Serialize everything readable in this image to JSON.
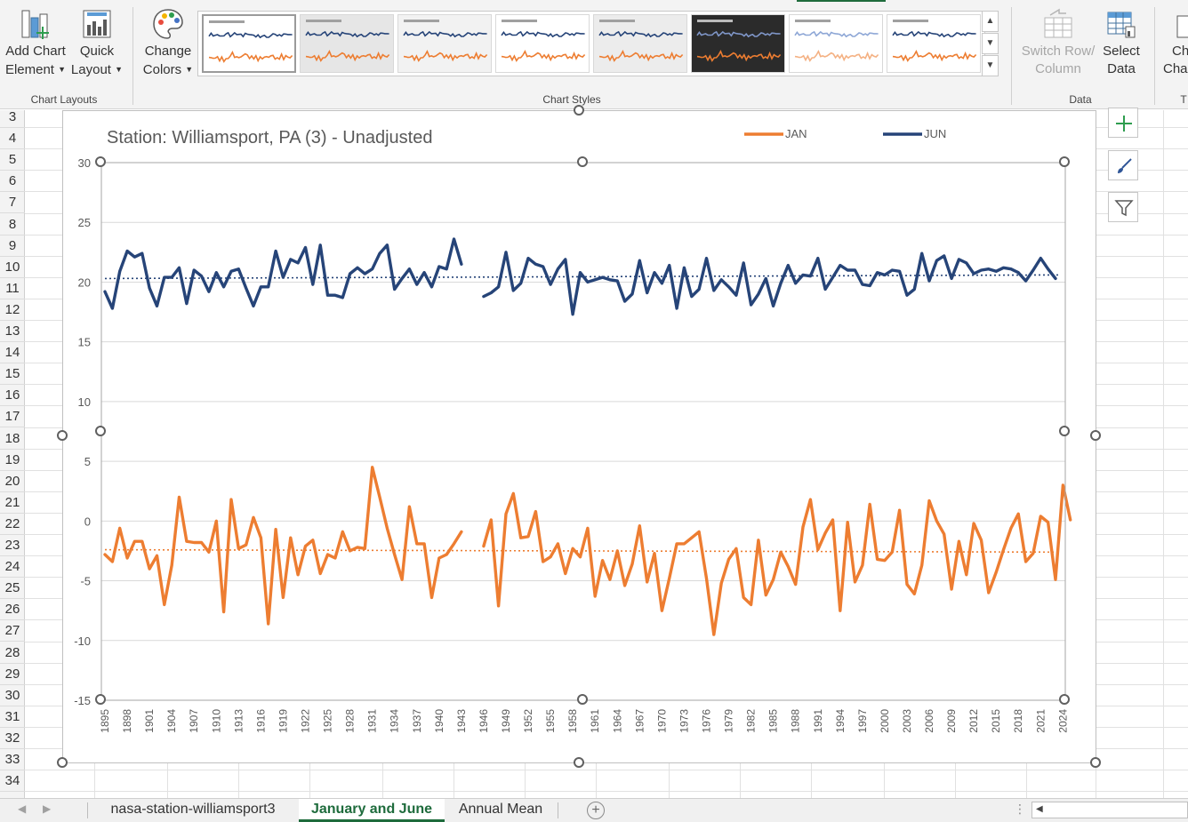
{
  "ribbon": {
    "add_chart_element": {
      "line1": "Add Chart",
      "line2": "Element"
    },
    "quick_layout": {
      "line1": "Quick",
      "line2": "Layout"
    },
    "change_colors": {
      "line1": "Change",
      "line2": "Colors"
    },
    "switch_row_column": {
      "line1": "Switch Row/",
      "line2": "Column"
    },
    "select_data": {
      "line1": "Select",
      "line2": "Data"
    },
    "change_chart_type": {
      "line1": "Ch",
      "line2": "Char"
    },
    "groups": {
      "chart_layouts": "Chart Layouts",
      "chart_styles": "Chart Styles",
      "data": "Data",
      "type": "T"
    }
  },
  "rows": [
    "3",
    "4",
    "5",
    "6",
    "7",
    "8",
    "9",
    "10",
    "11",
    "12",
    "13",
    "14",
    "15",
    "16",
    "17",
    "18",
    "19",
    "20",
    "21",
    "22",
    "23",
    "24",
    "25",
    "26",
    "27",
    "28",
    "29",
    "30",
    "31",
    "32",
    "33",
    "34"
  ],
  "sheet_tabs": {
    "tab1": "nasa-station-williamsport3",
    "tab2": "January and June",
    "tab3": "Annual Mean"
  },
  "colors": {
    "jan": "#ed7d31",
    "jun": "#264478",
    "excel_green": "#1e6b3c"
  },
  "chart_data": {
    "type": "line",
    "title": "Station: Williamsport, PA (3) - Unadjusted",
    "legend": [
      "JAN",
      "JUN"
    ],
    "legend_position": "top-right",
    "ylim": [
      -15,
      30
    ],
    "yticks": [
      30,
      25,
      20,
      15,
      10,
      5,
      0,
      -5,
      -10,
      -15
    ],
    "x_start": 1895,
    "x_end": 2023,
    "xtick_labels": [
      "1895",
      "1898",
      "1901",
      "1904",
      "1907",
      "1910",
      "1913",
      "1916",
      "1919",
      "1922",
      "1925",
      "1928",
      "1931",
      "1934",
      "1937",
      "1940",
      "1943",
      "1946",
      "1949",
      "1952",
      "1955",
      "1958",
      "1961",
      "1964",
      "1967",
      "1970",
      "1973",
      "1976",
      "1979",
      "1982",
      "1985",
      "1988",
      "1991",
      "1994",
      "1997",
      "2000",
      "2003",
      "2006",
      "2009",
      "2012",
      "2015",
      "2018",
      "2021",
      "2024"
    ],
    "trend": {
      "jan": [
        -2.4,
        -2.6
      ],
      "jun": [
        20.3,
        20.6
      ]
    },
    "series": [
      {
        "name": "JUN",
        "values": [
          19.2,
          17.8,
          20.9,
          22.6,
          22.1,
          22.4,
          19.5,
          18.0,
          20.4,
          20.4,
          21.2,
          18.2,
          21.0,
          20.5,
          19.2,
          20.8,
          19.6,
          20.9,
          21.1,
          19.5,
          18.0,
          19.6,
          19.6,
          22.6,
          20.4,
          21.9,
          21.6,
          22.9,
          19.8,
          23.1,
          18.9,
          18.9,
          18.7,
          20.7,
          21.2,
          20.7,
          21.1,
          22.4,
          23.1,
          19.4,
          20.3,
          21.1,
          19.8,
          20.8,
          19.6,
          21.3,
          21.1,
          23.6,
          21.5,
          null,
          null,
          18.8,
          19.1,
          19.6,
          22.5,
          19.3,
          19.9,
          22.0,
          21.5,
          21.3,
          19.8,
          21.1,
          21.9,
          17.3,
          20.8,
          20.0,
          20.2,
          20.4,
          20.2,
          20.1,
          18.4,
          19.0,
          21.8,
          19.1,
          20.8,
          19.9,
          21.4,
          17.8,
          21.2,
          18.8,
          19.4,
          22.0,
          19.3,
          20.2,
          19.6,
          18.9,
          21.6,
          18.1,
          19.0,
          20.3,
          18.0,
          19.9,
          21.4,
          19.9,
          20.6,
          20.5,
          22.0,
          19.4,
          20.4,
          21.4,
          21.0,
          21.0,
          19.8,
          19.7,
          20.8,
          20.6,
          21.0,
          20.9,
          18.9,
          19.4,
          22.4,
          20.1,
          21.8,
          22.2,
          20.3,
          21.9,
          21.6,
          20.7,
          21.0,
          21.1,
          20.9,
          21.2,
          21.1,
          20.8,
          20.1,
          21.0,
          22.0,
          21.1,
          20.3
        ],
        "color": "#264478"
      },
      {
        "name": "JAN",
        "values": [
          -2.8,
          -3.4,
          -0.6,
          -3.1,
          -1.7,
          -1.7,
          -4.0,
          -2.9,
          -7.0,
          -3.7,
          2.0,
          -1.7,
          -1.8,
          -1.8,
          -2.6,
          0.0,
          -7.6,
          1.8,
          -2.3,
          -2.0,
          0.3,
          -1.4,
          -8.6,
          -0.7,
          -6.4,
          -1.4,
          -4.5,
          -2.1,
          -1.6,
          -4.4,
          -2.8,
          -3.1,
          -0.9,
          -2.5,
          -2.2,
          -2.3,
          4.5,
          2.0,
          -0.6,
          -2.8,
          -4.9,
          1.2,
          -1.9,
          -1.9,
          -6.4,
          -3.1,
          -2.8,
          -1.9,
          -0.9,
          null,
          null,
          -2.1,
          0.1,
          -7.1,
          0.6,
          2.3,
          -1.4,
          -1.3,
          0.8,
          -3.4,
          -3.0,
          -1.9,
          -4.4,
          -2.3,
          -3.0,
          -0.6,
          -6.3,
          -3.3,
          -4.9,
          -2.5,
          -5.4,
          -3.6,
          -0.4,
          -5.1,
          -2.7,
          -7.5,
          -4.8,
          -1.9,
          -1.9,
          -1.4,
          -0.9,
          -4.8,
          -9.5,
          -5.2,
          -3.2,
          -2.3,
          -6.4,
          -7.0,
          -1.6,
          -6.2,
          -4.9,
          -2.6,
          -3.8,
          -5.3,
          -0.5,
          1.8,
          -2.4,
          -1.0,
          0.1,
          -7.5,
          -0.1,
          -5.1,
          -3.7,
          1.4,
          -3.2,
          -3.3,
          -2.6,
          0.9,
          -5.3,
          -6.1,
          -3.7,
          1.7,
          0.0,
          -1.1,
          -5.7,
          -1.7,
          -4.5,
          -0.2,
          -1.6,
          -6.0,
          -4.3,
          -2.4,
          -0.6,
          0.6,
          -3.4,
          -2.7,
          0.4,
          -0.1,
          -4.9,
          3.0,
          0.1
        ],
        "color": "#ed7d31"
      }
    ]
  }
}
